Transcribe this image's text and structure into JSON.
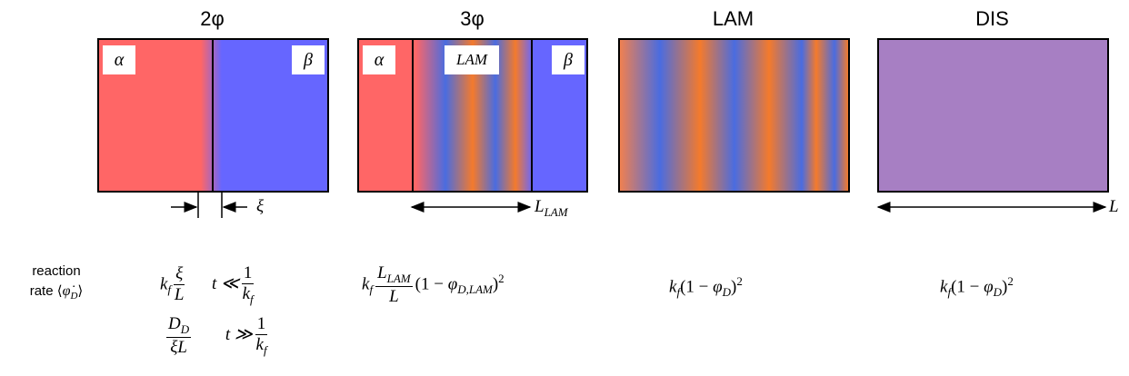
{
  "panels": [
    {
      "title": "2φ",
      "labels": [
        "α",
        "β"
      ],
      "width_label": "ξ"
    },
    {
      "title": "3φ",
      "labels": [
        "α",
        "LAM",
        "β"
      ],
      "width_label": "L",
      "width_label_sub": "LAM"
    },
    {
      "title": "LAM"
    },
    {
      "title": "DIS",
      "width_label": "L"
    }
  ],
  "rate_label": [
    "reaction",
    "rate ⟨",
    "φ̇",
    "D",
    "⟩"
  ],
  "rates": [
    {
      "early": [
        "k",
        "f",
        "ξ",
        "L",
        "t ≪",
        "1",
        "k",
        "f"
      ],
      "late": [
        "D",
        "D",
        "ξL",
        "t ≫",
        "1",
        "k",
        "f"
      ]
    },
    {
      "formula": [
        "k",
        "f",
        "L",
        "LAM",
        "L",
        "(1 − ",
        "φ",
        "D,LAM",
        ")",
        "2"
      ]
    },
    {
      "formula": [
        "k",
        "f",
        "(1 − ",
        "φ",
        "D",
        ")",
        "2"
      ]
    },
    {
      "formula": [
        "k",
        "f",
        "(1 − ",
        "φ",
        "D",
        ")",
        "2"
      ]
    }
  ]
}
